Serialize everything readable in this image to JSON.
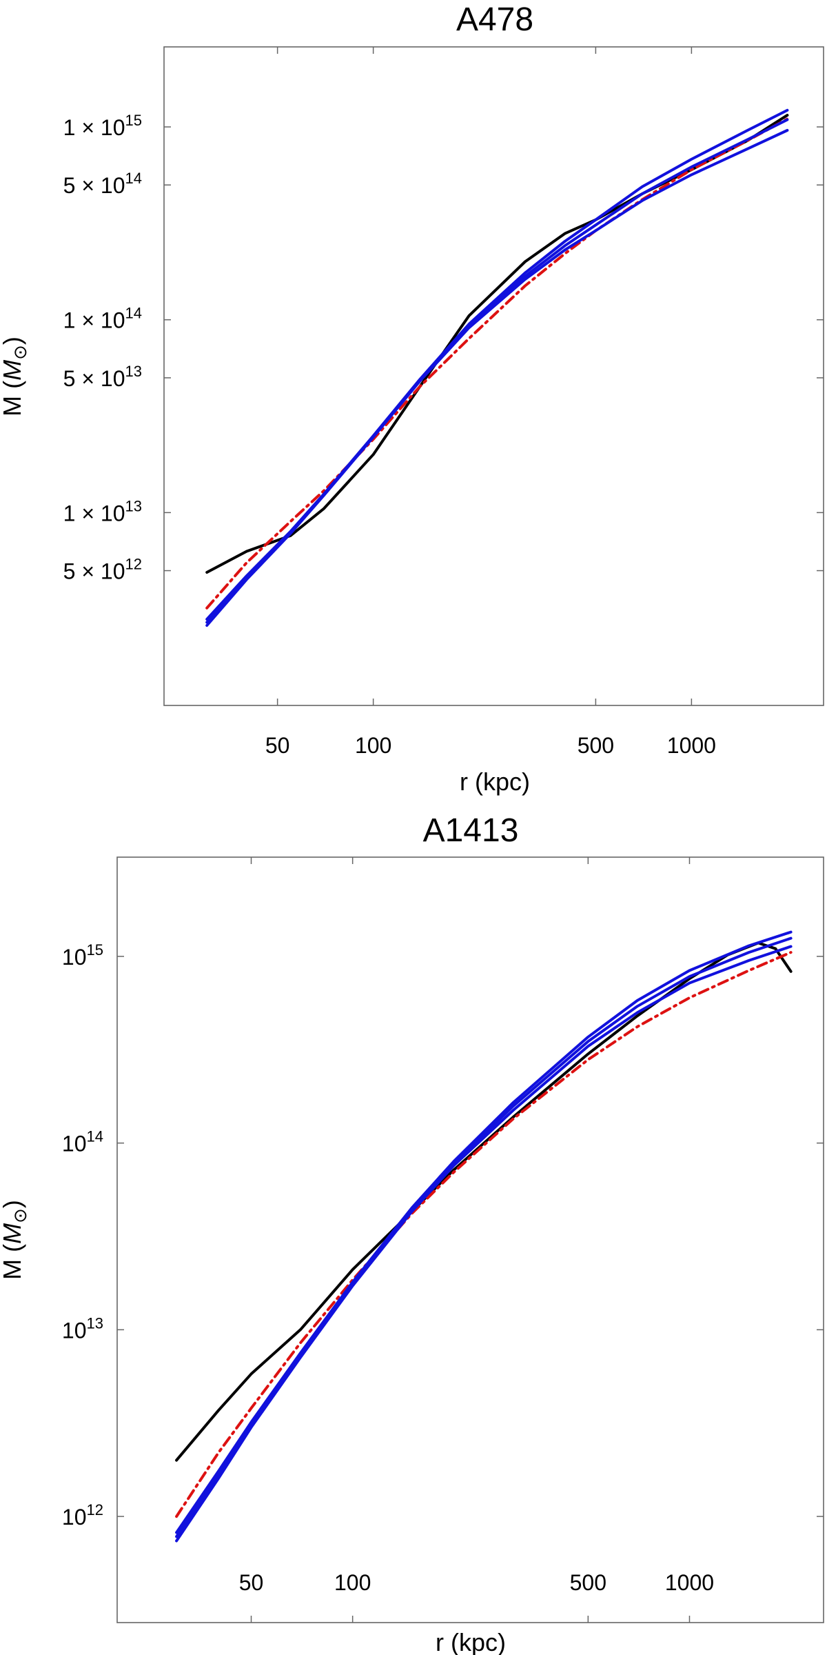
{
  "chart_data": [
    {
      "type": "line",
      "title": "A478",
      "xlabel": "r (kpc)",
      "ylabel_main": "M (",
      "ylabel_symbol": "M",
      "ylabel_subscript": "⊙",
      "ylabel_close": ")",
      "xscale": "log",
      "yscale": "log",
      "xlim": [
        22,
        2600
      ],
      "ylim": [
        1000000000000.0,
        2600000000000000.0
      ],
      "grid": false,
      "x_ticks": [
        {
          "value": 50,
          "label": "50"
        },
        {
          "value": 100,
          "label": "100"
        },
        {
          "value": 500,
          "label": "500"
        },
        {
          "value": 1000,
          "label": "1000"
        }
      ],
      "y_ticks": [
        {
          "value": 5000000000000.0,
          "mant": "5 × 10",
          "exp": "12"
        },
        {
          "value": 10000000000000.0,
          "mant": "1 × 10",
          "exp": "13"
        },
        {
          "value": 50000000000000.0,
          "mant": "5 × 10",
          "exp": "13"
        },
        {
          "value": 100000000000000.0,
          "mant": "1 × 10",
          "exp": "14"
        },
        {
          "value": 500000000000000.0,
          "mant": "5 × 10",
          "exp": "14"
        },
        {
          "value": 1000000000000000.0,
          "mant": "1 × 10",
          "exp": "15"
        }
      ],
      "series": [
        {
          "color": "#000000",
          "style": "solid",
          "width": 4,
          "x": [
            30,
            40,
            55,
            70,
            100,
            140,
            200,
            300,
            400,
            500,
            700,
            1000,
            1500,
            2000
          ],
          "y": [
            4900000000000.0,
            6300000000000.0,
            7600000000000.0,
            10500000000000.0,
            20000000000000.0,
            45000000000000.0,
            105000000000000.0,
            200000000000000.0,
            280000000000000.0,
            330000000000000.0,
            450000000000000.0,
            600000000000000.0,
            850000000000000.0,
            1150000000000000.0
          ]
        },
        {
          "color": "#dd1111",
          "style": "dashdot",
          "width": 4,
          "x": [
            30,
            40,
            55,
            70,
            100,
            140,
            200,
            300,
            400,
            500,
            700,
            1000,
            1500,
            2000
          ],
          "y": [
            3200000000000.0,
            5500000000000.0,
            9000000000000.0,
            13000000000000.0,
            24000000000000.0,
            45000000000000.0,
            80000000000000.0,
            150000000000000.0,
            220000000000000.0,
            290000000000000.0,
            420000000000000.0,
            600000000000000.0,
            850000000000000.0,
            1100000000000000.0
          ]
        },
        {
          "color": "#1111dd",
          "style": "solid",
          "width": 4,
          "x": [
            30,
            40,
            55,
            70,
            100,
            140,
            200,
            300,
            400,
            500,
            700,
            1000,
            1500,
            2000
          ],
          "y": [
            2800000000000.0,
            4700000000000.0,
            8000000000000.0,
            12500000000000.0,
            25000000000000.0,
            49000000000000.0,
            95000000000000.0,
            175000000000000.0,
            255000000000000.0,
            330000000000000.0,
            490000000000000.0,
            680000000000000.0,
            960000000000000.0,
            1220000000000000.0
          ]
        },
        {
          "color": "#1111dd",
          "style": "solid",
          "width": 4,
          "x": [
            30,
            40,
            55,
            70,
            100,
            140,
            200,
            300,
            400,
            500,
            700,
            1000,
            1500,
            2000
          ],
          "y": [
            2700000000000.0,
            4600000000000.0,
            7900000000000.0,
            12400000000000.0,
            24800000000000.0,
            48500000000000.0,
            93000000000000.0,
            168000000000000.0,
            242000000000000.0,
            310000000000000.0,
            450000000000000.0,
            620000000000000.0,
            860000000000000.0,
            1090000000000000.0
          ]
        },
        {
          "color": "#1111dd",
          "style": "solid",
          "width": 4,
          "x": [
            30,
            40,
            55,
            70,
            100,
            140,
            200,
            300,
            400,
            500,
            700,
            1000,
            1500,
            2000
          ],
          "y": [
            2600000000000.0,
            4500000000000.0,
            7800000000000.0,
            12300000000000.0,
            24600000000000.0,
            48000000000000.0,
            91000000000000.0,
            162000000000000.0,
            230000000000000.0,
            290000000000000.0,
            415000000000000.0,
            565000000000000.0,
            770000000000000.0,
            960000000000000.0
          ]
        }
      ]
    },
    {
      "type": "line",
      "title": "A1413",
      "xlabel": "r (kpc)",
      "ylabel_main": "M (",
      "ylabel_symbol": "M",
      "ylabel_subscript": "⊙",
      "ylabel_close": ")",
      "xscale": "log",
      "yscale": "log",
      "xlim": [
        20,
        2500
      ],
      "ylim": [
        270000000000.0,
        3400000000000000.0
      ],
      "grid": false,
      "x_ticks": [
        {
          "value": 50,
          "label": "50"
        },
        {
          "value": 100,
          "label": "100"
        },
        {
          "value": 500,
          "label": "500"
        },
        {
          "value": 1000,
          "label": "1000"
        }
      ],
      "y_ticks": [
        {
          "value": 1000000000000.0,
          "mant": "10",
          "exp": "12"
        },
        {
          "value": 10000000000000.0,
          "mant": "10",
          "exp": "13"
        },
        {
          "value": 100000000000000.0,
          "mant": "10",
          "exp": "14"
        },
        {
          "value": 1000000000000000.0,
          "mant": "10",
          "exp": "15"
        }
      ],
      "series": [
        {
          "color": "#000000",
          "style": "solid",
          "width": 4,
          "x": [
            30,
            40,
            50,
            70,
            100,
            150,
            200,
            300,
            500,
            700,
            1000,
            1300,
            1600,
            1800,
            2000
          ],
          "y": [
            2000000000000.0,
            3700000000000.0,
            5800000000000.0,
            10000000000000.0,
            21000000000000.0,
            43000000000000.0,
            72000000000000.0,
            138000000000000.0,
            300000000000000.0,
            480000000000000.0,
            760000000000000.0,
            1020000000000000.0,
            1180000000000000.0,
            1100000000000000.0,
            830000000000000.0
          ]
        },
        {
          "color": "#dd1111",
          "style": "dashdot",
          "width": 4,
          "x": [
            30,
            40,
            50,
            70,
            100,
            150,
            200,
            300,
            500,
            700,
            1000,
            1500,
            2000
          ],
          "y": [
            1000000000000.0,
            2200000000000.0,
            3800000000000.0,
            8500000000000.0,
            18500000000000.0,
            42000000000000.0,
            70000000000000.0,
            135000000000000.0,
            280000000000000.0,
            420000000000000.0,
            600000000000000.0,
            840000000000000.0,
            1050000000000000.0
          ]
        },
        {
          "color": "#1111dd",
          "style": "solid",
          "width": 4,
          "x": [
            30,
            40,
            50,
            70,
            100,
            150,
            200,
            300,
            500,
            700,
            1000,
            1500,
            2000
          ],
          "y": [
            820000000000.0,
            1750000000000.0,
            3200000000000.0,
            7500000000000.0,
            18000000000000.0,
            45000000000000.0,
            80000000000000.0,
            165000000000000.0,
            370000000000000.0,
            580000000000000.0,
            840000000000000.0,
            1140000000000000.0,
            1350000000000000.0
          ]
        },
        {
          "color": "#1111dd",
          "style": "solid",
          "width": 4,
          "x": [
            30,
            40,
            50,
            70,
            100,
            150,
            200,
            300,
            500,
            700,
            1000,
            1500,
            2000
          ],
          "y": [
            780000000000.0,
            1680000000000.0,
            3100000000000.0,
            7300000000000.0,
            17600000000000.0,
            44000000000000.0,
            78000000000000.0,
            158000000000000.0,
            350000000000000.0,
            540000000000000.0,
            780000000000000.0,
            1050000000000000.0,
            1250000000000000.0
          ]
        },
        {
          "color": "#1111dd",
          "style": "solid",
          "width": 4,
          "x": [
            30,
            40,
            50,
            70,
            100,
            150,
            200,
            300,
            500,
            700,
            1000,
            1500,
            2000
          ],
          "y": [
            740000000000.0,
            1600000000000.0,
            3000000000000.0,
            7100000000000.0,
            17200000000000.0,
            43000000000000.0,
            76000000000000.0,
            150000000000000.0,
            330000000000000.0,
            500000000000000.0,
            720000000000000.0,
            950000000000000.0,
            1130000000000000.0
          ]
        }
      ]
    }
  ]
}
